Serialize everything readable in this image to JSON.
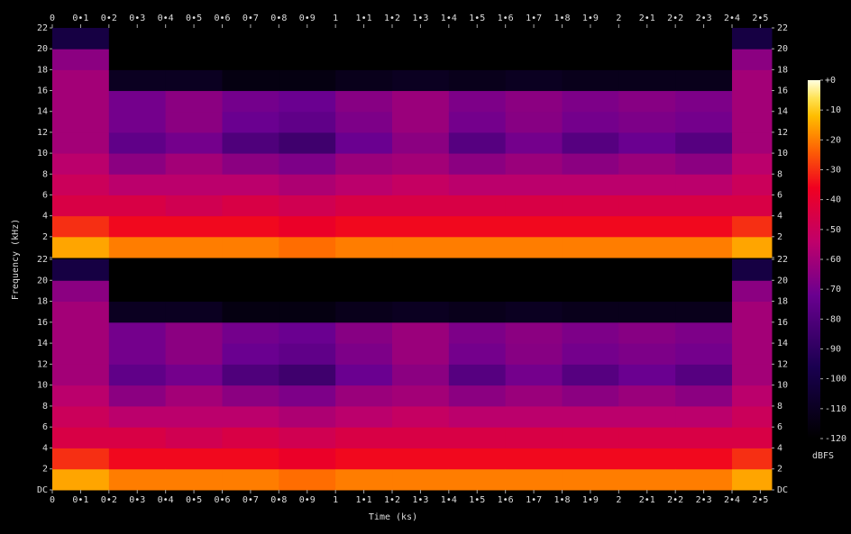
{
  "chart_data": {
    "type": "spectrogram",
    "xlabel": "Time (ks)",
    "ylabel": "Frequency (kHz)",
    "colorbar_label": "dBFS",
    "xlim": [
      0,
      2.54
    ],
    "ylim": [
      0,
      22
    ],
    "clim": [
      -120,
      0
    ],
    "xticks": [
      0,
      {
        "value": 0.1,
        "label": "0•1"
      },
      {
        "value": 0.2,
        "label": "0•2"
      },
      {
        "value": 0.3,
        "label": "0•3"
      },
      {
        "value": 0.4,
        "label": "0•4"
      },
      {
        "value": 0.5,
        "label": "0•5"
      },
      {
        "value": 0.6,
        "label": "0•6"
      },
      {
        "value": 0.7,
        "label": "0•7"
      },
      {
        "value": 0.8,
        "label": "0•8"
      },
      {
        "value": 0.9,
        "label": "0•9"
      },
      1,
      {
        "value": 1.1,
        "label": "1•1"
      },
      {
        "value": 1.2,
        "label": "1•2"
      },
      {
        "value": 1.3,
        "label": "1•3"
      },
      {
        "value": 1.4,
        "label": "1•4"
      },
      {
        "value": 1.5,
        "label": "1•5"
      },
      {
        "value": 1.6,
        "label": "1•6"
      },
      {
        "value": 1.7,
        "label": "1•7"
      },
      {
        "value": 1.8,
        "label": "1•8"
      },
      {
        "value": 1.9,
        "label": "1•9"
      },
      2,
      {
        "value": 2.1,
        "label": "2•1"
      },
      {
        "value": 2.2,
        "label": "2•2"
      },
      {
        "value": 2.3,
        "label": "2•3"
      },
      {
        "value": 2.4,
        "label": "2•4"
      },
      {
        "value": 2.5,
        "label": "2•5"
      }
    ],
    "yticks": [
      {
        "value": 0,
        "label": "DC"
      },
      2,
      4,
      6,
      8,
      10,
      12,
      14,
      16,
      18,
      20,
      22
    ],
    "cticks": [
      {
        "value": 0,
        "label": "+0"
      },
      -10,
      -20,
      -30,
      -40,
      -50,
      -60,
      -70,
      -80,
      -90,
      -100,
      -110,
      -120
    ],
    "bins": [
      0,
      0.2,
      0.4,
      0.6,
      0.8,
      1.0,
      1.2,
      1.4,
      1.6,
      1.8,
      2.0,
      2.2,
      2.4,
      2.54
    ],
    "ybins": [
      0,
      2,
      4,
      6,
      8,
      10,
      12,
      14,
      16,
      18,
      20,
      22
    ],
    "series": [
      {
        "values": [
          [
            -15,
            -30,
            -45,
            -50,
            -55,
            -60,
            -60,
            -60,
            -60,
            -65,
            -100
          ],
          [
            -20,
            -35,
            -45,
            -55,
            -65,
            -75,
            -70,
            -70,
            -110,
            -120,
            -120
          ],
          [
            -20,
            -35,
            -48,
            -55,
            -60,
            -70,
            -65,
            -65,
            -110,
            -120,
            -120
          ],
          [
            -20,
            -35,
            -45,
            -55,
            -65,
            -80,
            -72,
            -70,
            -115,
            -120,
            -120
          ],
          [
            -22,
            -38,
            -48,
            -58,
            -68,
            -85,
            -75,
            -72,
            -115,
            -120,
            -120
          ],
          [
            -20,
            -35,
            -45,
            -55,
            -62,
            -72,
            -68,
            -66,
            -112,
            -120,
            -120
          ],
          [
            -20,
            -35,
            -45,
            -52,
            -60,
            -65,
            -62,
            -62,
            -110,
            -120,
            -120
          ],
          [
            -20,
            -35,
            -45,
            -55,
            -65,
            -78,
            -70,
            -68,
            -112,
            -120,
            -120
          ],
          [
            -20,
            -35,
            -45,
            -55,
            -62,
            -70,
            -66,
            -65,
            -110,
            -120,
            -120
          ],
          [
            -20,
            -35,
            -45,
            -55,
            -65,
            -78,
            -70,
            -68,
            -112,
            -120,
            -120
          ],
          [
            -20,
            -35,
            -45,
            -55,
            -62,
            -72,
            -68,
            -66,
            -112,
            -120,
            -120
          ],
          [
            -20,
            -35,
            -45,
            -55,
            -65,
            -78,
            -70,
            -68,
            -112,
            -120,
            -120
          ],
          [
            -15,
            -30,
            -45,
            -50,
            -55,
            -60,
            -60,
            -60,
            -60,
            -65,
            -100
          ]
        ]
      },
      {
        "values": [
          [
            -15,
            -30,
            -45,
            -50,
            -55,
            -60,
            -60,
            -60,
            -60,
            -65,
            -100
          ],
          [
            -20,
            -35,
            -45,
            -55,
            -65,
            -75,
            -70,
            -70,
            -110,
            -120,
            -120
          ],
          [
            -20,
            -35,
            -48,
            -55,
            -60,
            -70,
            -65,
            -65,
            -110,
            -120,
            -120
          ],
          [
            -20,
            -35,
            -45,
            -55,
            -65,
            -80,
            -72,
            -70,
            -115,
            -120,
            -120
          ],
          [
            -22,
            -38,
            -48,
            -58,
            -68,
            -85,
            -75,
            -72,
            -115,
            -120,
            -120
          ],
          [
            -20,
            -35,
            -45,
            -55,
            -62,
            -72,
            -68,
            -66,
            -112,
            -120,
            -120
          ],
          [
            -20,
            -35,
            -45,
            -52,
            -60,
            -65,
            -62,
            -62,
            -110,
            -120,
            -120
          ],
          [
            -20,
            -35,
            -45,
            -55,
            -65,
            -78,
            -70,
            -68,
            -112,
            -120,
            -120
          ],
          [
            -20,
            -35,
            -45,
            -55,
            -62,
            -70,
            -66,
            -65,
            -110,
            -120,
            -120
          ],
          [
            -20,
            -35,
            -45,
            -55,
            -65,
            -78,
            -70,
            -68,
            -112,
            -120,
            -120
          ],
          [
            -20,
            -35,
            -45,
            -55,
            -62,
            -72,
            -68,
            -66,
            -112,
            -120,
            -120
          ],
          [
            -20,
            -35,
            -45,
            -55,
            -65,
            -78,
            -70,
            -68,
            -112,
            -120,
            -120
          ],
          [
            -15,
            -30,
            -45,
            -50,
            -55,
            -60,
            -60,
            -60,
            -60,
            -65,
            -100
          ]
        ]
      }
    ]
  }
}
